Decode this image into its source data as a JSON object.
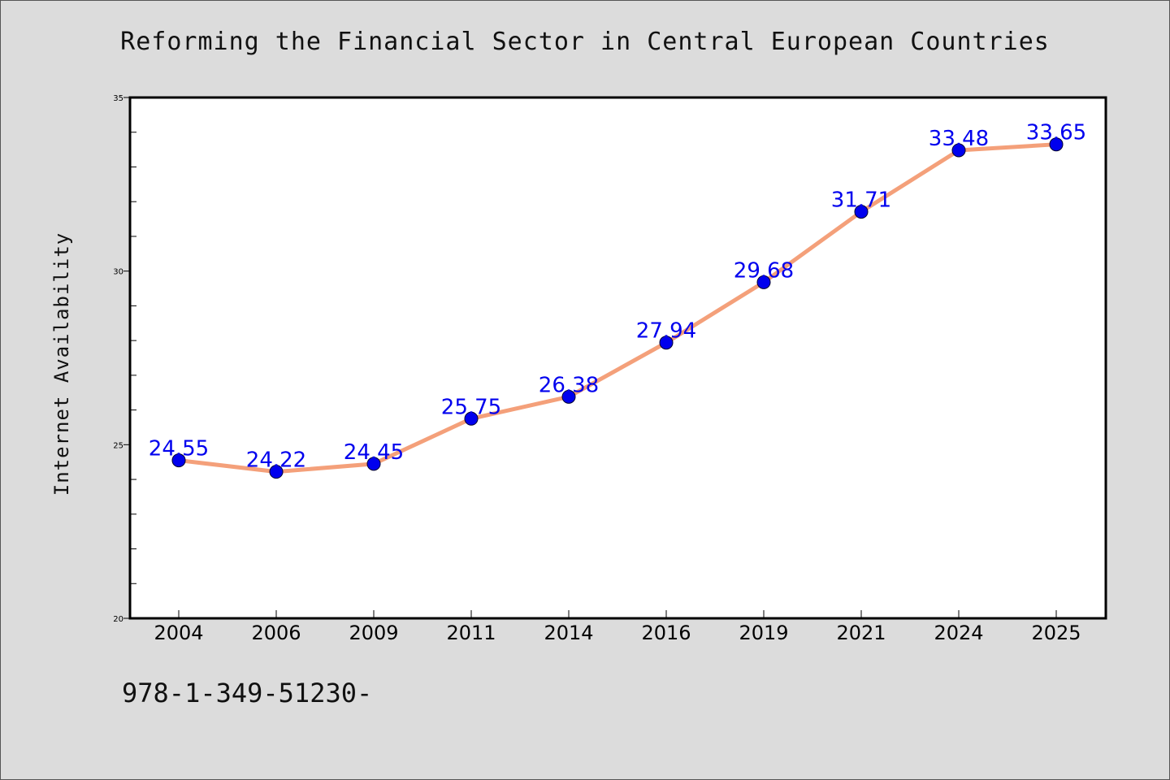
{
  "chart_data": {
    "type": "line",
    "title": "Reforming the Financial Sector in Central European Countries",
    "xlabel": "",
    "ylabel": "Internet Availability",
    "categories": [
      "2004",
      "2006",
      "2009",
      "2011",
      "2014",
      "2016",
      "2019",
      "2021",
      "2024",
      "2025"
    ],
    "series": [
      {
        "values": [
          24.55,
          24.22,
          24.45,
          25.75,
          26.38,
          27.94,
          29.68,
          31.71,
          33.48,
          33.65
        ],
        "labels": [
          "24.55",
          "24.22",
          "24.45",
          "25.75",
          "26.38",
          "27.94",
          "29.68",
          "31.71",
          "33.48",
          "33.65"
        ]
      }
    ],
    "ylim": [
      20,
      35
    ],
    "yticks": [
      "20",
      "25",
      "30",
      "35"
    ],
    "grid": false,
    "line_color": "#f4a07a",
    "marker_color": "#0000ee",
    "label_color": "#0000ee"
  },
  "footer_text": "978-1-349-51230-"
}
